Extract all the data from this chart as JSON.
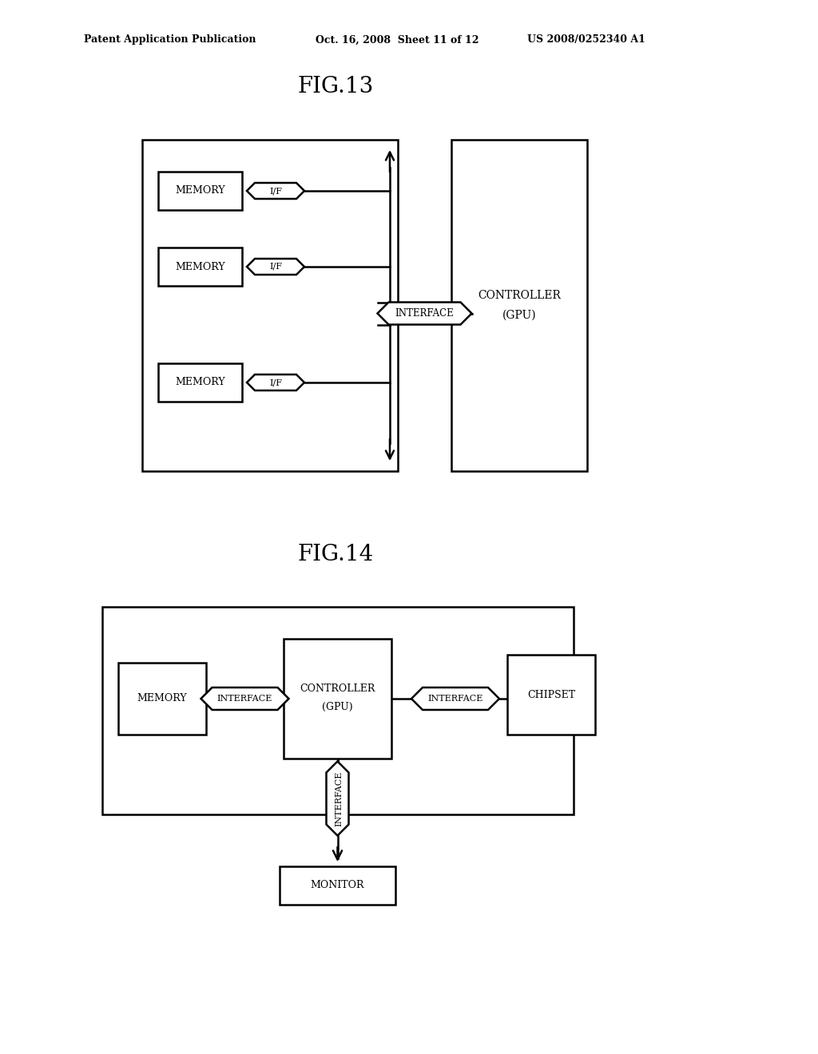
{
  "bg_color": "#ffffff",
  "fig_width": 10.24,
  "fig_height": 13.2,
  "header_left": "Patent Application Publication",
  "header_mid": "Oct. 16, 2008  Sheet 11 of 12",
  "header_right": "US 2008/0252340 A1",
  "fig13_title": "FIG.13",
  "fig14_title": "FIG.14",
  "header_fontsize": 9,
  "title_fontsize": 20
}
